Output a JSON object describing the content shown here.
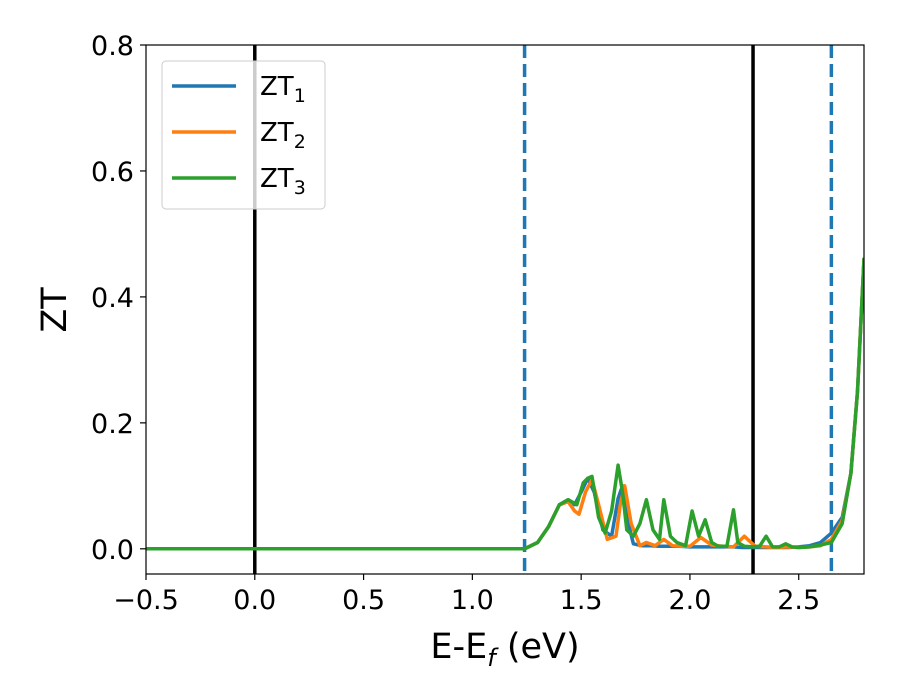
{
  "chart_data": {
    "type": "line",
    "title": "",
    "xlabel": {
      "base": "E-E",
      "sub": "f",
      "unit": " (eV)"
    },
    "ylabel": "ZT",
    "xlim": [
      -0.5,
      2.8
    ],
    "ylim": [
      -0.04,
      0.8
    ],
    "xticks": [
      -0.5,
      0.0,
      0.5,
      1.0,
      1.5,
      2.0,
      2.5
    ],
    "xtick_labels": [
      "−0.5",
      "0.0",
      "0.5",
      "1.0",
      "1.5",
      "2.0",
      "2.5"
    ],
    "yticks": [
      0.0,
      0.2,
      0.4,
      0.6,
      0.8
    ],
    "ytick_labels": [
      "0.0",
      "0.2",
      "0.4",
      "0.6",
      "0.8"
    ],
    "grid": false,
    "legend": {
      "placement": "top-left",
      "entries": [
        {
          "base": "ZT",
          "sub": "1",
          "color": "#1f77b4"
        },
        {
          "base": "ZT",
          "sub": "2",
          "color": "#ff7f0e"
        },
        {
          "base": "ZT",
          "sub": "3",
          "color": "#2ca02c"
        }
      ]
    },
    "vlines": [
      {
        "x": 0.0,
        "style": "solid",
        "color": "#000000"
      },
      {
        "x": 1.24,
        "style": "dashed",
        "color": "#1f77b4"
      },
      {
        "x": 2.29,
        "style": "solid",
        "color": "#000000"
      },
      {
        "x": 2.65,
        "style": "dashed",
        "color": "#1f77b4"
      }
    ],
    "series": [
      {
        "name": "ZT1",
        "color": "#1f77b4",
        "x": [
          -0.5,
          1.24,
          1.3,
          1.35,
          1.4,
          1.44,
          1.47,
          1.5,
          1.53,
          1.56,
          1.6,
          1.64,
          1.67,
          1.69,
          1.71,
          1.74,
          1.78,
          1.82,
          1.86,
          1.9,
          1.95,
          2.0,
          2.05,
          2.1,
          2.15,
          2.2,
          2.24,
          2.29,
          2.35,
          2.4,
          2.45,
          2.5,
          2.55,
          2.6,
          2.65,
          2.7,
          2.74,
          2.77,
          2.8
        ],
        "y": [
          0.0,
          0.0,
          0.01,
          0.035,
          0.07,
          0.075,
          0.07,
          0.09,
          0.112,
          0.09,
          0.03,
          0.02,
          0.08,
          0.1,
          0.05,
          0.008,
          0.005,
          0.005,
          0.004,
          0.004,
          0.004,
          0.003,
          0.003,
          0.003,
          0.003,
          0.003,
          0.002,
          0.002,
          0.002,
          0.002,
          0.002,
          0.003,
          0.005,
          0.01,
          0.025,
          0.05,
          0.12,
          0.25,
          0.46
        ]
      },
      {
        "name": "ZT2",
        "color": "#ff7f0e",
        "x": [
          -0.5,
          1.24,
          1.3,
          1.35,
          1.4,
          1.44,
          1.47,
          1.49,
          1.52,
          1.55,
          1.58,
          1.62,
          1.66,
          1.68,
          1.7,
          1.73,
          1.77,
          1.8,
          1.84,
          1.88,
          1.92,
          1.96,
          2.0,
          2.05,
          2.1,
          2.15,
          2.2,
          2.25,
          2.3,
          2.35,
          2.4,
          2.45,
          2.5,
          2.55,
          2.6,
          2.65,
          2.7,
          2.74,
          2.77,
          2.8
        ],
        "y": [
          0.0,
          0.0,
          0.01,
          0.035,
          0.07,
          0.075,
          0.06,
          0.055,
          0.09,
          0.11,
          0.07,
          0.015,
          0.02,
          0.07,
          0.1,
          0.04,
          0.005,
          0.01,
          0.005,
          0.015,
          0.005,
          0.004,
          0.004,
          0.018,
          0.006,
          0.004,
          0.003,
          0.02,
          0.004,
          0.003,
          0.002,
          0.003,
          0.002,
          0.003,
          0.005,
          0.015,
          0.045,
          0.12,
          0.25,
          0.46
        ]
      },
      {
        "name": "ZT3",
        "color": "#2ca02c",
        "x": [
          -0.5,
          1.24,
          1.3,
          1.35,
          1.4,
          1.44,
          1.48,
          1.51,
          1.53,
          1.55,
          1.58,
          1.61,
          1.64,
          1.67,
          1.69,
          1.71,
          1.74,
          1.77,
          1.8,
          1.83,
          1.86,
          1.88,
          1.91,
          1.94,
          1.98,
          2.01,
          2.04,
          2.07,
          2.1,
          2.13,
          2.17,
          2.2,
          2.22,
          2.25,
          2.29,
          2.32,
          2.35,
          2.38,
          2.41,
          2.44,
          2.47,
          2.5,
          2.55,
          2.6,
          2.65,
          2.7,
          2.74,
          2.77,
          2.8
        ],
        "y": [
          0.0,
          0.0,
          0.01,
          0.035,
          0.07,
          0.078,
          0.07,
          0.105,
          0.112,
          0.115,
          0.05,
          0.025,
          0.06,
          0.133,
          0.09,
          0.03,
          0.02,
          0.04,
          0.078,
          0.03,
          0.015,
          0.078,
          0.02,
          0.01,
          0.005,
          0.06,
          0.02,
          0.046,
          0.01,
          0.004,
          0.004,
          0.062,
          0.01,
          0.004,
          0.003,
          0.004,
          0.02,
          0.003,
          0.003,
          0.008,
          0.003,
          0.002,
          0.003,
          0.006,
          0.01,
          0.04,
          0.12,
          0.25,
          0.46
        ]
      }
    ]
  }
}
